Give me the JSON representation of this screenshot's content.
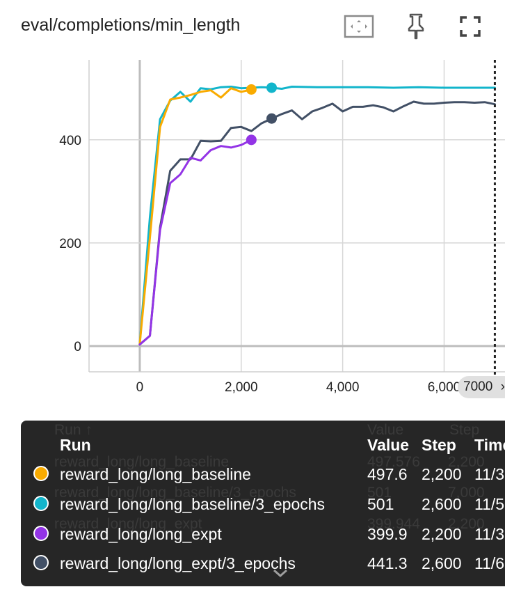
{
  "card": {
    "title": "eval/completions/min_length",
    "icons": [
      "fit-domain-icon",
      "pin-icon",
      "fullscreen-icon"
    ]
  },
  "chart_data": {
    "type": "line",
    "title": "eval/completions/min_length",
    "xlabel": "",
    "ylabel": "",
    "xlim": [
      -1000,
      7200
    ],
    "ylim": [
      -50,
      555
    ],
    "x_ticks": [
      0,
      2000,
      4000,
      6000
    ],
    "x_tick_labels": [
      "0",
      "2,000",
      "4,000",
      "6,000"
    ],
    "y_ticks": [
      0,
      200,
      400
    ],
    "y_tick_labels": [
      "0",
      "200",
      "400"
    ],
    "grid": true,
    "cursor_step": 7000,
    "cursor_label": "7000",
    "series": [
      {
        "name": "reward_long/long_baseline/3_epochs",
        "color": "#12b5cb",
        "x": [
          0,
          200,
          400,
          600,
          800,
          1000,
          1200,
          1400,
          1600,
          1800,
          2000,
          2200,
          2400,
          2600,
          2800,
          3000,
          3500,
          4000,
          4500,
          5000,
          5500,
          6000,
          6500,
          7000
        ],
        "y": [
          4,
          250,
          440,
          476,
          493,
          474,
          500,
          498,
          502,
          503,
          500,
          501,
          502,
          501,
          499,
          503,
          502,
          502,
          502,
          501,
          502,
          501,
          501,
          501
        ],
        "marker": {
          "x": 2600,
          "y": 501
        }
      },
      {
        "name": "reward_long/long_baseline",
        "color": "#f9ab00",
        "x": [
          0,
          200,
          400,
          600,
          800,
          1000,
          1200,
          1400,
          1600,
          1800,
          2000,
          2200
        ],
        "y": [
          4,
          210,
          425,
          478,
          482,
          487,
          493,
          496,
          482,
          500,
          493,
          497.6
        ],
        "marker": {
          "x": 2200,
          "y": 497.6
        }
      },
      {
        "name": "reward_long/long_expt/3_epochs",
        "color": "#425066",
        "x": [
          0,
          200,
          400,
          600,
          800,
          1000,
          1200,
          1400,
          1600,
          1800,
          2000,
          2200,
          2400,
          2600,
          2800,
          3000,
          3200,
          3400,
          3600,
          3800,
          4000,
          4200,
          4400,
          4600,
          4800,
          5000,
          5200,
          5400,
          5600,
          5800,
          6000,
          6200,
          6400,
          6600,
          6800,
          7000
        ],
        "y": [
          3,
          20,
          230,
          340,
          362,
          362,
          398,
          397,
          398,
          423,
          425,
          417,
          432,
          441,
          450,
          457,
          440,
          455,
          462,
          470,
          455,
          464,
          464,
          467,
          463,
          455,
          465,
          474,
          470,
          470,
          472,
          473,
          473,
          472,
          473,
          469
        ],
        "marker": {
          "x": 2600,
          "y": 441.3
        }
      },
      {
        "name": "reward_long/long_expt",
        "color": "#9334e6",
        "x": [
          0,
          200,
          400,
          600,
          800,
          1000,
          1200,
          1400,
          1600,
          1800,
          2000,
          2200
        ],
        "y": [
          3,
          20,
          225,
          316,
          333,
          365,
          360,
          380,
          388,
          385,
          390,
          399.9
        ],
        "marker": {
          "x": 2200,
          "y": 399.9
        }
      }
    ]
  },
  "tooltip": {
    "headers": {
      "run": "Run",
      "value": "Value",
      "step": "Step",
      "time": "Time"
    },
    "ghost": {
      "run_header": "Run ↑",
      "value_header": "Value",
      "step_header": "Step",
      "rows": [
        {
          "run": "reward_long/long_baseline",
          "value": "497.576",
          "step": "2,200"
        },
        {
          "run": "reward_long/long_baseline/3_epochs",
          "value": "501",
          "step": "7,000"
        },
        {
          "run": "reward_long/long_expt",
          "value": "399.944",
          "step": "2,200"
        }
      ]
    },
    "rows": [
      {
        "run": "reward_long/long_baseline",
        "value": "497.6",
        "step": "2,200",
        "time": "11/3",
        "color": "#f9ab00"
      },
      {
        "run": "reward_long/long_baseline/3_epochs",
        "value": "501",
        "step": "2,600",
        "time": "11/5",
        "color": "#12b5cb"
      },
      {
        "run": "reward_long/long_expt",
        "value": "399.9",
        "step": "2,200",
        "time": "11/3",
        "color": "#9334e6"
      },
      {
        "run": "reward_long/long_expt/3_epochs",
        "value": "441.3",
        "step": "2,600",
        "time": "11/6",
        "color": "#425066"
      }
    ]
  }
}
